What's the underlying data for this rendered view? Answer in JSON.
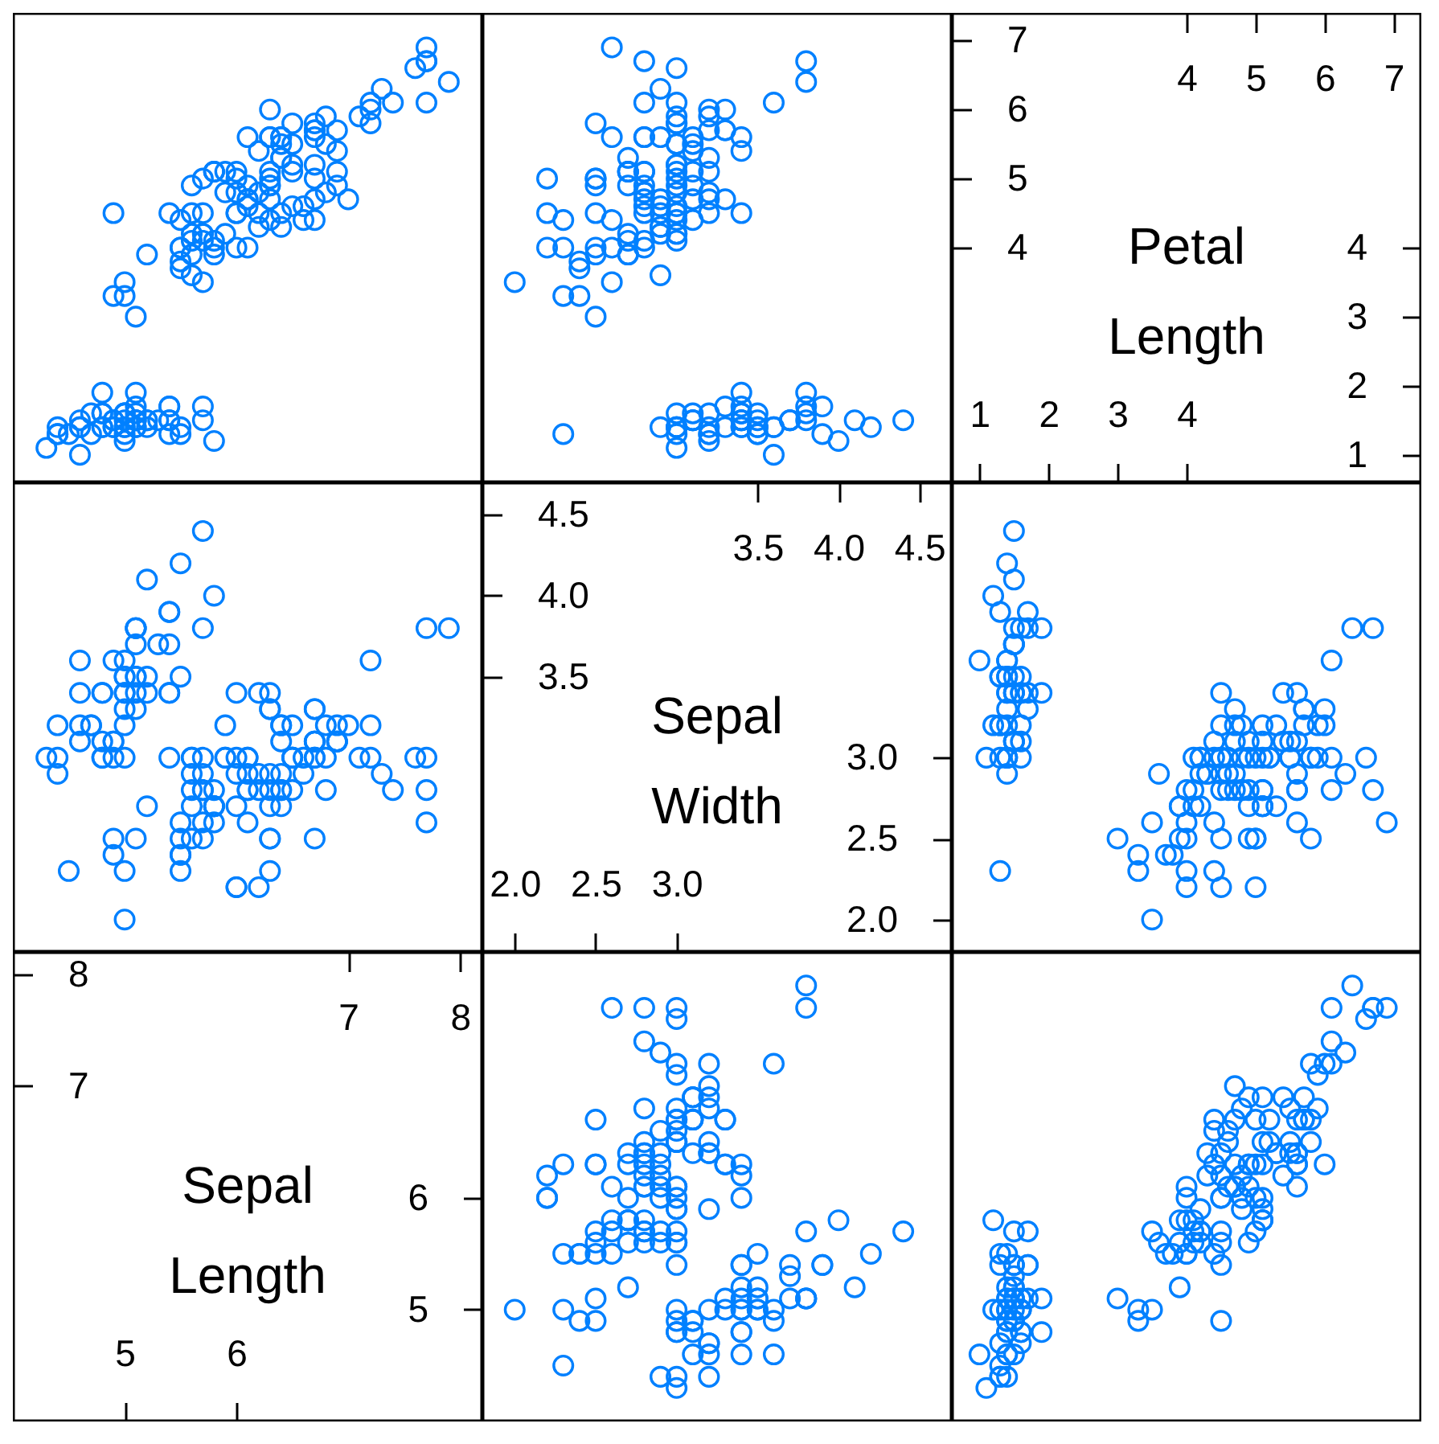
{
  "chart_data": [
    {
      "type": "scatter",
      "color": "#0080ff",
      "marker": "circle",
      "tick_labels": false,
      "xlim": [
        4.0,
        8.2
      ],
      "ylim": [
        0.6,
        7.4
      ],
      "x": [
        5.1,
        4.9,
        4.7,
        4.6,
        5.0,
        5.4,
        4.6,
        5.0,
        4.4,
        4.9,
        5.4,
        4.8,
        4.8,
        4.3,
        5.8,
        5.7,
        5.4,
        5.1,
        5.7,
        5.1,
        5.4,
        5.1,
        4.6,
        5.1,
        4.8,
        5.0,
        5.0,
        5.2,
        5.2,
        4.7,
        4.8,
        5.4,
        5.2,
        5.5,
        4.9,
        5.0,
        5.5,
        4.9,
        4.4,
        5.1,
        5.0,
        4.5,
        4.4,
        5.0,
        5.1,
        4.8,
        5.1,
        4.6,
        5.3,
        5.0,
        7.0,
        6.4,
        6.9,
        5.5,
        6.5,
        5.7,
        6.3,
        4.9,
        6.6,
        5.2,
        5.0,
        5.9,
        6.0,
        6.1,
        5.6,
        6.7,
        5.6,
        5.8,
        6.2,
        5.6,
        5.9,
        6.1,
        6.3,
        6.1,
        6.4,
        6.6,
        6.8,
        6.7,
        6.0,
        5.7,
        5.5,
        5.5,
        5.8,
        6.0,
        5.4,
        6.0,
        6.7,
        6.3,
        5.6,
        5.5,
        5.5,
        6.1,
        5.8,
        5.0,
        5.6,
        5.7,
        5.7,
        6.2,
        5.1,
        5.7,
        6.3,
        5.8,
        7.1,
        6.3,
        6.5,
        7.6,
        4.9,
        7.3,
        6.7,
        7.2,
        6.5,
        6.4,
        6.8,
        5.7,
        5.8,
        6.4,
        6.5,
        7.7,
        7.7,
        6.0,
        6.9,
        5.6,
        7.7,
        6.3,
        6.7,
        7.2,
        6.2,
        6.1,
        6.4,
        7.2,
        7.4,
        7.9,
        6.4,
        6.3,
        6.1,
        7.7,
        6.3,
        6.4,
        6.0,
        6.9,
        6.7,
        6.9,
        5.8,
        6.8,
        6.7,
        6.7,
        6.3,
        6.5,
        6.2,
        5.9
      ],
      "values": [
        1.4,
        1.4,
        1.3,
        1.5,
        1.4,
        1.7,
        1.4,
        1.5,
        1.4,
        1.5,
        1.5,
        1.6,
        1.4,
        1.1,
        1.2,
        1.5,
        1.3,
        1.4,
        1.7,
        1.5,
        1.7,
        1.5,
        1.0,
        1.7,
        1.9,
        1.6,
        1.6,
        1.5,
        1.4,
        1.6,
        1.6,
        1.5,
        1.5,
        1.4,
        1.5,
        1.2,
        1.3,
        1.4,
        1.3,
        1.5,
        1.3,
        1.3,
        1.3,
        1.6,
        1.9,
        1.4,
        1.6,
        1.4,
        1.5,
        1.4,
        4.7,
        4.5,
        4.9,
        4.0,
        4.6,
        4.5,
        4.7,
        3.3,
        4.6,
        3.9,
        3.5,
        4.2,
        4.0,
        4.7,
        3.6,
        4.4,
        4.5,
        4.1,
        4.5,
        3.9,
        4.8,
        4.0,
        4.9,
        4.7,
        4.3,
        4.4,
        4.8,
        5.0,
        4.5,
        3.5,
        3.8,
        3.7,
        3.9,
        5.1,
        4.5,
        4.5,
        4.7,
        4.4,
        4.1,
        4.0,
        4.4,
        4.6,
        4.0,
        3.3,
        4.2,
        4.2,
        4.2,
        4.3,
        3.0,
        4.1,
        6.0,
        5.1,
        5.9,
        5.6,
        5.8,
        6.6,
        4.5,
        6.3,
        5.8,
        6.1,
        5.1,
        5.3,
        5.5,
        5.0,
        5.1,
        5.3,
        5.5,
        6.7,
        6.9,
        5.0,
        5.7,
        4.9,
        6.7,
        4.9,
        5.7,
        6.0,
        4.8,
        4.9,
        5.6,
        5.8,
        6.1,
        6.4,
        5.6,
        5.1,
        5.6,
        6.1,
        5.6,
        5.5,
        4.8,
        5.4,
        5.6,
        5.1,
        5.1,
        5.9,
        5.7,
        5.2,
        5.0,
        5.2,
        5.4,
        5.1
      ]
    },
    {
      "type": "scatter",
      "color": "#0080ff",
      "marker": "circle",
      "tick_labels": false,
      "xlim": [
        1.8,
        4.7
      ],
      "ylim": [
        0.6,
        7.4
      ],
      "x": [
        3.5,
        3.0,
        3.2,
        3.1,
        3.6,
        3.9,
        3.4,
        3.4,
        2.9,
        3.1,
        3.7,
        3.4,
        3.0,
        3.0,
        4.0,
        4.4,
        3.9,
        3.5,
        3.8,
        3.8,
        3.4,
        3.7,
        3.6,
        3.3,
        3.4,
        3.0,
        3.4,
        3.5,
        3.4,
        3.2,
        3.1,
        3.4,
        4.1,
        4.2,
        3.1,
        3.2,
        3.5,
        3.6,
        3.0,
        3.4,
        3.5,
        2.3,
        3.2,
        3.5,
        3.8,
        3.0,
        3.8,
        3.2,
        3.7,
        3.3,
        3.2,
        3.2,
        3.1,
        2.3,
        2.8,
        2.8,
        3.3,
        2.4,
        2.9,
        2.7,
        2.0,
        3.0,
        2.2,
        2.9,
        2.9,
        3.1,
        3.0,
        2.7,
        2.2,
        2.5,
        3.2,
        2.8,
        2.5,
        2.8,
        2.9,
        3.0,
        2.8,
        3.0,
        2.9,
        2.6,
        2.4,
        2.4,
        2.7,
        2.7,
        3.0,
        3.4,
        3.1,
        2.3,
        3.0,
        2.5,
        2.6,
        3.0,
        2.6,
        2.3,
        2.7,
        3.0,
        2.9,
        2.9,
        2.5,
        2.8,
        3.3,
        2.7,
        3.0,
        2.9,
        3.0,
        3.0,
        2.5,
        2.9,
        2.5,
        3.6,
        3.2,
        2.7,
        3.0,
        2.5,
        2.8,
        3.2,
        3.0,
        3.8,
        2.6,
        2.2,
        3.2,
        2.8,
        2.8,
        2.7,
        3.3,
        3.2,
        2.8,
        3.0,
        2.8,
        3.0,
        2.8,
        3.8,
        2.8,
        2.8,
        2.6,
        3.0,
        3.4,
        3.1,
        3.0,
        3.1,
        3.1,
        3.1,
        2.7,
        3.2,
        3.3,
        3.0,
        2.5,
        3.0,
        3.4,
        3.0
      ],
      "values": [
        1.4,
        1.4,
        1.3,
        1.5,
        1.4,
        1.7,
        1.4,
        1.5,
        1.4,
        1.5,
        1.5,
        1.6,
        1.4,
        1.1,
        1.2,
        1.5,
        1.3,
        1.4,
        1.7,
        1.5,
        1.7,
        1.5,
        1.0,
        1.7,
        1.9,
        1.6,
        1.6,
        1.5,
        1.4,
        1.6,
        1.6,
        1.5,
        1.5,
        1.4,
        1.5,
        1.2,
        1.3,
        1.4,
        1.3,
        1.5,
        1.3,
        1.3,
        1.3,
        1.6,
        1.9,
        1.4,
        1.6,
        1.4,
        1.5,
        1.4,
        4.7,
        4.5,
        4.9,
        4.0,
        4.6,
        4.5,
        4.7,
        3.3,
        4.6,
        3.9,
        3.5,
        4.2,
        4.0,
        4.7,
        3.6,
        4.4,
        4.5,
        4.1,
        4.5,
        3.9,
        4.8,
        4.0,
        4.9,
        4.7,
        4.3,
        4.4,
        4.8,
        5.0,
        4.5,
        3.5,
        3.8,
        3.7,
        3.9,
        5.1,
        4.5,
        4.5,
        4.7,
        4.4,
        4.1,
        4.0,
        4.4,
        4.6,
        4.0,
        3.3,
        4.2,
        4.2,
        4.2,
        4.3,
        3.0,
        4.1,
        6.0,
        5.1,
        5.9,
        5.6,
        5.8,
        6.6,
        4.5,
        6.3,
        5.8,
        6.1,
        5.1,
        5.3,
        5.5,
        5.0,
        5.1,
        5.3,
        5.5,
        6.7,
        6.9,
        5.0,
        5.7,
        4.9,
        6.7,
        4.9,
        5.7,
        6.0,
        4.8,
        4.9,
        5.6,
        5.8,
        6.1,
        6.4,
        5.6,
        5.1,
        5.6,
        6.1,
        5.6,
        5.5,
        4.8,
        5.4,
        5.6,
        5.1,
        5.1,
        5.9,
        5.7,
        5.2,
        5.0,
        5.2,
        5.4,
        5.1
      ]
    },
    {
      "type": "scatter",
      "title": "Petal Length",
      "xlim": [
        0.6,
        7.4
      ],
      "xticks": [
        1,
        2,
        3,
        4
      ],
      "x2lim": [
        0.6,
        7.4
      ],
      "x2ticks": [
        4,
        5,
        6,
        7
      ],
      "ylim": [
        0.6,
        7.4
      ],
      "yticks": [
        4,
        5,
        6,
        7
      ],
      "y2lim": [
        0.6,
        7.4
      ],
      "y2ticks": [
        1,
        2,
        3,
        4
      ]
    },
    {
      "type": "scatter",
      "color": "#0080ff",
      "marker": "circle",
      "tick_labels": false,
      "xlim": [
        4.0,
        8.2
      ],
      "ylim": [
        1.8,
        4.7
      ],
      "x": [
        5.1,
        4.9,
        4.7,
        4.6,
        5.0,
        5.4,
        4.6,
        5.0,
        4.4,
        4.9,
        5.4,
        4.8,
        4.8,
        4.3,
        5.8,
        5.7,
        5.4,
        5.1,
        5.7,
        5.1,
        5.4,
        5.1,
        4.6,
        5.1,
        4.8,
        5.0,
        5.0,
        5.2,
        5.2,
        4.7,
        4.8,
        5.4,
        5.2,
        5.5,
        4.9,
        5.0,
        5.5,
        4.9,
        4.4,
        5.1,
        5.0,
        4.5,
        4.4,
        5.0,
        5.1,
        4.8,
        5.1,
        4.6,
        5.3,
        5.0,
        7.0,
        6.4,
        6.9,
        5.5,
        6.5,
        5.7,
        6.3,
        4.9,
        6.6,
        5.2,
        5.0,
        5.9,
        6.0,
        6.1,
        5.6,
        6.7,
        5.6,
        5.8,
        6.2,
        5.6,
        5.9,
        6.1,
        6.3,
        6.1,
        6.4,
        6.6,
        6.8,
        6.7,
        6.0,
        5.7,
        5.5,
        5.5,
        5.8,
        6.0,
        5.4,
        6.0,
        6.7,
        6.3,
        5.6,
        5.5,
        5.5,
        6.1,
        5.8,
        5.0,
        5.6,
        5.7,
        5.7,
        6.2,
        5.1,
        5.7,
        6.3,
        5.8,
        7.1,
        6.3,
        6.5,
        7.6,
        4.9,
        7.3,
        6.7,
        7.2,
        6.5,
        6.4,
        6.8,
        5.7,
        5.8,
        6.4,
        6.5,
        7.7,
        7.7,
        6.0,
        6.9,
        5.6,
        7.7,
        6.3,
        6.7,
        7.2,
        6.2,
        6.1,
        6.4,
        7.2,
        7.4,
        7.9,
        6.4,
        6.3,
        6.1,
        7.7,
        6.3,
        6.4,
        6.0,
        6.9,
        6.7,
        6.9,
        5.8,
        6.8,
        6.7,
        6.7,
        6.3,
        6.5,
        6.2,
        5.9
      ],
      "values": [
        3.5,
        3.0,
        3.2,
        3.1,
        3.6,
        3.9,
        3.4,
        3.4,
        2.9,
        3.1,
        3.7,
        3.4,
        3.0,
        3.0,
        4.0,
        4.4,
        3.9,
        3.5,
        3.8,
        3.8,
        3.4,
        3.7,
        3.6,
        3.3,
        3.4,
        3.0,
        3.4,
        3.5,
        3.4,
        3.2,
        3.1,
        3.4,
        4.1,
        4.2,
        3.1,
        3.2,
        3.5,
        3.6,
        3.0,
        3.4,
        3.5,
        2.3,
        3.2,
        3.5,
        3.8,
        3.0,
        3.8,
        3.2,
        3.7,
        3.3,
        3.2,
        3.2,
        3.1,
        2.3,
        2.8,
        2.8,
        3.3,
        2.4,
        2.9,
        2.7,
        2.0,
        3.0,
        2.2,
        2.9,
        2.9,
        3.1,
        3.0,
        2.7,
        2.2,
        2.5,
        3.2,
        2.8,
        2.5,
        2.8,
        2.9,
        3.0,
        2.8,
        3.0,
        2.9,
        2.6,
        2.4,
        2.4,
        2.7,
        2.7,
        3.0,
        3.4,
        3.1,
        2.3,
        3.0,
        2.5,
        2.6,
        3.0,
        2.6,
        2.3,
        2.7,
        3.0,
        2.9,
        2.9,
        2.5,
        2.8,
        3.3,
        2.7,
        3.0,
        2.9,
        3.0,
        3.0,
        2.5,
        2.9,
        2.5,
        3.6,
        3.2,
        2.7,
        3.0,
        2.5,
        2.8,
        3.2,
        3.0,
        3.8,
        2.6,
        2.2,
        3.2,
        2.8,
        2.8,
        2.7,
        3.3,
        3.2,
        2.8,
        3.0,
        2.8,
        3.0,
        2.8,
        3.8,
        2.8,
        2.8,
        2.6,
        3.0,
        3.4,
        3.1,
        3.0,
        3.1,
        3.1,
        3.1,
        2.7,
        3.2,
        3.3,
        3.0,
        2.5,
        3.0,
        3.4,
        3.0
      ]
    },
    {
      "type": "scatter",
      "title": "Sepal Width",
      "xlim": [
        1.8,
        4.7
      ],
      "xticks": [
        {
          "value": 2,
          "label": "2.0"
        },
        {
          "value": 2.5,
          "label": "2.5"
        },
        {
          "value": 3,
          "label": "3.0"
        }
      ],
      "x2lim": [
        1.8,
        4.7
      ],
      "x2ticks": [
        {
          "value": 3.5,
          "label": "3.5"
        },
        {
          "value": 4,
          "label": "4.0"
        },
        {
          "value": 4.5,
          "label": "4.5"
        }
      ],
      "ylim": [
        1.8,
        4.7
      ],
      "yticks": [
        {
          "value": 3.5,
          "label": "3.5"
        },
        {
          "value": 4,
          "label": "4.0"
        },
        {
          "value": 4.5,
          "label": "4.5"
        }
      ],
      "y2lim": [
        1.8,
        4.7
      ],
      "y2ticks": [
        {
          "value": 2,
          "label": "2.0"
        },
        {
          "value": 2.5,
          "label": "2.5"
        },
        {
          "value": 3,
          "label": "3.0"
        }
      ]
    },
    {
      "type": "scatter",
      "color": "#0080ff",
      "marker": "circle",
      "tick_labels": false,
      "xlim": [
        0.6,
        7.4
      ],
      "ylim": [
        1.8,
        4.7
      ],
      "x": [
        1.4,
        1.4,
        1.3,
        1.5,
        1.4,
        1.7,
        1.4,
        1.5,
        1.4,
        1.5,
        1.5,
        1.6,
        1.4,
        1.1,
        1.2,
        1.5,
        1.3,
        1.4,
        1.7,
        1.5,
        1.7,
        1.5,
        1.0,
        1.7,
        1.9,
        1.6,
        1.6,
        1.5,
        1.4,
        1.6,
        1.6,
        1.5,
        1.5,
        1.4,
        1.5,
        1.2,
        1.3,
        1.4,
        1.3,
        1.5,
        1.3,
        1.3,
        1.3,
        1.6,
        1.9,
        1.4,
        1.6,
        1.4,
        1.5,
        1.4,
        4.7,
        4.5,
        4.9,
        4.0,
        4.6,
        4.5,
        4.7,
        3.3,
        4.6,
        3.9,
        3.5,
        4.2,
        4.0,
        4.7,
        3.6,
        4.4,
        4.5,
        4.1,
        4.5,
        3.9,
        4.8,
        4.0,
        4.9,
        4.7,
        4.3,
        4.4,
        4.8,
        5.0,
        4.5,
        3.5,
        3.8,
        3.7,
        3.9,
        5.1,
        4.5,
        4.5,
        4.7,
        4.4,
        4.1,
        4.0,
        4.4,
        4.6,
        4.0,
        3.3,
        4.2,
        4.2,
        4.2,
        4.3,
        3.0,
        4.1,
        6.0,
        5.1,
        5.9,
        5.6,
        5.8,
        6.6,
        4.5,
        6.3,
        5.8,
        6.1,
        5.1,
        5.3,
        5.5,
        5.0,
        5.1,
        5.3,
        5.5,
        6.7,
        6.9,
        5.0,
        5.7,
        4.9,
        6.7,
        4.9,
        5.7,
        6.0,
        4.8,
        4.9,
        5.6,
        5.8,
        6.1,
        6.4,
        5.6,
        5.1,
        5.6,
        6.1,
        5.6,
        5.5,
        4.8,
        5.4,
        5.6,
        5.1,
        5.1,
        5.9,
        5.7,
        5.2,
        5.0,
        5.2,
        5.4,
        5.1
      ],
      "values": [
        3.5,
        3.0,
        3.2,
        3.1,
        3.6,
        3.9,
        3.4,
        3.4,
        2.9,
        3.1,
        3.7,
        3.4,
        3.0,
        3.0,
        4.0,
        4.4,
        3.9,
        3.5,
        3.8,
        3.8,
        3.4,
        3.7,
        3.6,
        3.3,
        3.4,
        3.0,
        3.4,
        3.5,
        3.4,
        3.2,
        3.1,
        3.4,
        4.1,
        4.2,
        3.1,
        3.2,
        3.5,
        3.6,
        3.0,
        3.4,
        3.5,
        2.3,
        3.2,
        3.5,
        3.8,
        3.0,
        3.8,
        3.2,
        3.7,
        3.3,
        3.2,
        3.2,
        3.1,
        2.3,
        2.8,
        2.8,
        3.3,
        2.4,
        2.9,
        2.7,
        2.0,
        3.0,
        2.2,
        2.9,
        2.9,
        3.1,
        3.0,
        2.7,
        2.2,
        2.5,
        3.2,
        2.8,
        2.5,
        2.8,
        2.9,
        3.0,
        2.8,
        3.0,
        2.9,
        2.6,
        2.4,
        2.4,
        2.7,
        2.7,
        3.0,
        3.4,
        3.1,
        2.3,
        3.0,
        2.5,
        2.6,
        3.0,
        2.6,
        2.3,
        2.7,
        3.0,
        2.9,
        2.9,
        2.5,
        2.8,
        3.3,
        2.7,
        3.0,
        2.9,
        3.0,
        3.0,
        2.5,
        2.9,
        2.5,
        3.6,
        3.2,
        2.7,
        3.0,
        2.5,
        2.8,
        3.2,
        3.0,
        3.8,
        2.6,
        2.2,
        3.2,
        2.8,
        2.8,
        2.7,
        3.3,
        3.2,
        2.8,
        3.0,
        2.8,
        3.0,
        2.8,
        3.8,
        2.8,
        2.8,
        2.6,
        3.0,
        3.4,
        3.1,
        3.0,
        3.1,
        3.1,
        3.1,
        2.7,
        3.2,
        3.3,
        3.0,
        2.5,
        3.0,
        3.4,
        3.0
      ]
    },
    {
      "type": "scatter",
      "title": "Sepal Length",
      "xlim": [
        4.0,
        8.2
      ],
      "xticks": [
        5,
        6
      ],
      "x2lim": [
        4.0,
        8.2
      ],
      "x2ticks": [
        7,
        8
      ],
      "ylim": [
        4.0,
        8.2
      ],
      "yticks": [
        7,
        8
      ],
      "y2lim": [
        4.0,
        8.2
      ],
      "y2ticks": [
        5,
        6
      ]
    },
    {
      "type": "scatter",
      "color": "#0080ff",
      "marker": "circle",
      "tick_labels": false,
      "xlim": [
        1.8,
        4.7
      ],
      "ylim": [
        4.0,
        8.2
      ],
      "x": [
        3.5,
        3.0,
        3.2,
        3.1,
        3.6,
        3.9,
        3.4,
        3.4,
        2.9,
        3.1,
        3.7,
        3.4,
        3.0,
        3.0,
        4.0,
        4.4,
        3.9,
        3.5,
        3.8,
        3.8,
        3.4,
        3.7,
        3.6,
        3.3,
        3.4,
        3.0,
        3.4,
        3.5,
        3.4,
        3.2,
        3.1,
        3.4,
        4.1,
        4.2,
        3.1,
        3.2,
        3.5,
        3.6,
        3.0,
        3.4,
        3.5,
        2.3,
        3.2,
        3.5,
        3.8,
        3.0,
        3.8,
        3.2,
        3.7,
        3.3,
        3.2,
        3.2,
        3.1,
        2.3,
        2.8,
        2.8,
        3.3,
        2.4,
        2.9,
        2.7,
        2.0,
        3.0,
        2.2,
        2.9,
        2.9,
        3.1,
        3.0,
        2.7,
        2.2,
        2.5,
        3.2,
        2.8,
        2.5,
        2.8,
        2.9,
        3.0,
        2.8,
        3.0,
        2.9,
        2.6,
        2.4,
        2.4,
        2.7,
        2.7,
        3.0,
        3.4,
        3.1,
        2.3,
        3.0,
        2.5,
        2.6,
        3.0,
        2.6,
        2.3,
        2.7,
        3.0,
        2.9,
        2.9,
        2.5,
        2.8,
        3.3,
        2.7,
        3.0,
        2.9,
        3.0,
        3.0,
        2.5,
        2.9,
        2.5,
        3.6,
        3.2,
        2.7,
        3.0,
        2.5,
        2.8,
        3.2,
        3.0,
        3.8,
        2.6,
        2.2,
        3.2,
        2.8,
        2.8,
        2.7,
        3.3,
        3.2,
        2.8,
        3.0,
        2.8,
        3.0,
        2.8,
        3.8,
        2.8,
        2.8,
        2.6,
        3.0,
        3.4,
        3.1,
        3.0,
        3.1,
        3.1,
        3.1,
        2.7,
        3.2,
        3.3,
        3.0,
        2.5,
        3.0,
        3.4,
        3.0
      ],
      "values": [
        5.1,
        4.9,
        4.7,
        4.6,
        5.0,
        5.4,
        4.6,
        5.0,
        4.4,
        4.9,
        5.4,
        4.8,
        4.8,
        4.3,
        5.8,
        5.7,
        5.4,
        5.1,
        5.7,
        5.1,
        5.4,
        5.1,
        4.6,
        5.1,
        4.8,
        5.0,
        5.0,
        5.2,
        5.2,
        4.7,
        4.8,
        5.4,
        5.2,
        5.5,
        4.9,
        5.0,
        5.5,
        4.9,
        4.4,
        5.1,
        5.0,
        4.5,
        4.4,
        5.0,
        5.1,
        4.8,
        5.1,
        4.6,
        5.3,
        5.0,
        7.0,
        6.4,
        6.9,
        5.5,
        6.5,
        5.7,
        6.3,
        4.9,
        6.6,
        5.2,
        5.0,
        5.9,
        6.0,
        6.1,
        5.6,
        6.7,
        5.6,
        5.8,
        6.2,
        5.6,
        5.9,
        6.1,
        6.3,
        6.1,
        6.4,
        6.6,
        6.8,
        6.7,
        6.0,
        5.7,
        5.5,
        5.5,
        5.8,
        6.0,
        5.4,
        6.0,
        6.7,
        6.3,
        5.6,
        5.5,
        5.5,
        6.1,
        5.8,
        5.0,
        5.6,
        5.7,
        5.7,
        6.2,
        5.1,
        5.7,
        6.3,
        5.8,
        7.1,
        6.3,
        6.5,
        7.6,
        4.9,
        7.3,
        6.7,
        7.2,
        6.5,
        6.4,
        6.8,
        5.7,
        5.8,
        6.4,
        6.5,
        7.7,
        7.7,
        6.0,
        6.9,
        5.6,
        7.7,
        6.3,
        6.7,
        7.2,
        6.2,
        6.1,
        6.4,
        7.2,
        7.4,
        7.9,
        6.4,
        6.3,
        6.1,
        7.7,
        6.3,
        6.4,
        6.0,
        6.9,
        6.7,
        6.9,
        5.8,
        6.8,
        6.7,
        6.7,
        6.3,
        6.5,
        6.2,
        5.9
      ]
    },
    {
      "type": "scatter",
      "color": "#0080ff",
      "marker": "circle",
      "tick_labels": false,
      "xlim": [
        0.6,
        7.4
      ],
      "ylim": [
        4.0,
        8.2
      ],
      "x": [
        1.4,
        1.4,
        1.3,
        1.5,
        1.4,
        1.7,
        1.4,
        1.5,
        1.4,
        1.5,
        1.5,
        1.6,
        1.4,
        1.1,
        1.2,
        1.5,
        1.3,
        1.4,
        1.7,
        1.5,
        1.7,
        1.5,
        1.0,
        1.7,
        1.9,
        1.6,
        1.6,
        1.5,
        1.4,
        1.6,
        1.6,
        1.5,
        1.5,
        1.4,
        1.5,
        1.2,
        1.3,
        1.4,
        1.3,
        1.5,
        1.3,
        1.3,
        1.3,
        1.6,
        1.9,
        1.4,
        1.6,
        1.4,
        1.5,
        1.4,
        4.7,
        4.5,
        4.9,
        4.0,
        4.6,
        4.5,
        4.7,
        3.3,
        4.6,
        3.9,
        3.5,
        4.2,
        4.0,
        4.7,
        3.6,
        4.4,
        4.5,
        4.1,
        4.5,
        3.9,
        4.8,
        4.0,
        4.9,
        4.7,
        4.3,
        4.4,
        4.8,
        5.0,
        4.5,
        3.5,
        3.8,
        3.7,
        3.9,
        5.1,
        4.5,
        4.5,
        4.7,
        4.4,
        4.1,
        4.0,
        4.4,
        4.6,
        4.0,
        3.3,
        4.2,
        4.2,
        4.2,
        4.3,
        3.0,
        4.1,
        6.0,
        5.1,
        5.9,
        5.6,
        5.8,
        6.6,
        4.5,
        6.3,
        5.8,
        6.1,
        5.1,
        5.3,
        5.5,
        5.0,
        5.1,
        5.3,
        5.5,
        6.7,
        6.9,
        5.0,
        5.7,
        4.9,
        6.7,
        4.9,
        5.7,
        6.0,
        4.8,
        4.9,
        5.6,
        5.8,
        6.1,
        6.4,
        5.6,
        5.1,
        5.6,
        6.1,
        5.6,
        5.5,
        4.8,
        5.4,
        5.6,
        5.1,
        5.1,
        5.9,
        5.7,
        5.2,
        5.0,
        5.2,
        5.4,
        5.1
      ],
      "values": [
        5.1,
        4.9,
        4.7,
        4.6,
        5.0,
        5.4,
        4.6,
        5.0,
        4.4,
        4.9,
        5.4,
        4.8,
        4.8,
        4.3,
        5.8,
        5.7,
        5.4,
        5.1,
        5.7,
        5.1,
        5.4,
        5.1,
        4.6,
        5.1,
        4.8,
        5.0,
        5.0,
        5.2,
        5.2,
        4.7,
        4.8,
        5.4,
        5.2,
        5.5,
        4.9,
        5.0,
        5.5,
        4.9,
        4.4,
        5.1,
        5.0,
        4.5,
        4.4,
        5.0,
        5.1,
        4.8,
        5.1,
        4.6,
        5.3,
        5.0,
        7.0,
        6.4,
        6.9,
        5.5,
        6.5,
        5.7,
        6.3,
        4.9,
        6.6,
        5.2,
        5.0,
        5.9,
        6.0,
        6.1,
        5.6,
        6.7,
        5.6,
        5.8,
        6.2,
        5.6,
        5.9,
        6.1,
        6.3,
        6.1,
        6.4,
        6.6,
        6.8,
        6.7,
        6.0,
        5.7,
        5.5,
        5.5,
        5.8,
        6.0,
        5.4,
        6.0,
        6.7,
        6.3,
        5.6,
        5.5,
        5.5,
        6.1,
        5.8,
        5.0,
        5.6,
        5.7,
        5.7,
        6.2,
        5.1,
        5.7,
        6.3,
        5.8,
        7.1,
        6.3,
        6.5,
        7.6,
        4.9,
        7.3,
        6.7,
        7.2,
        6.5,
        6.4,
        6.8,
        5.7,
        5.8,
        6.4,
        6.5,
        7.7,
        7.7,
        6.0,
        6.9,
        5.6,
        7.7,
        6.3,
        6.7,
        7.2,
        6.2,
        6.1,
        6.4,
        7.2,
        7.4,
        7.9,
        6.4,
        6.3,
        6.1,
        7.7,
        6.3,
        6.4,
        6.0,
        6.9,
        6.7,
        6.9,
        5.8,
        6.8,
        6.7,
        6.7,
        6.3,
        6.5,
        6.2,
        5.9
      ]
    }
  ]
}
